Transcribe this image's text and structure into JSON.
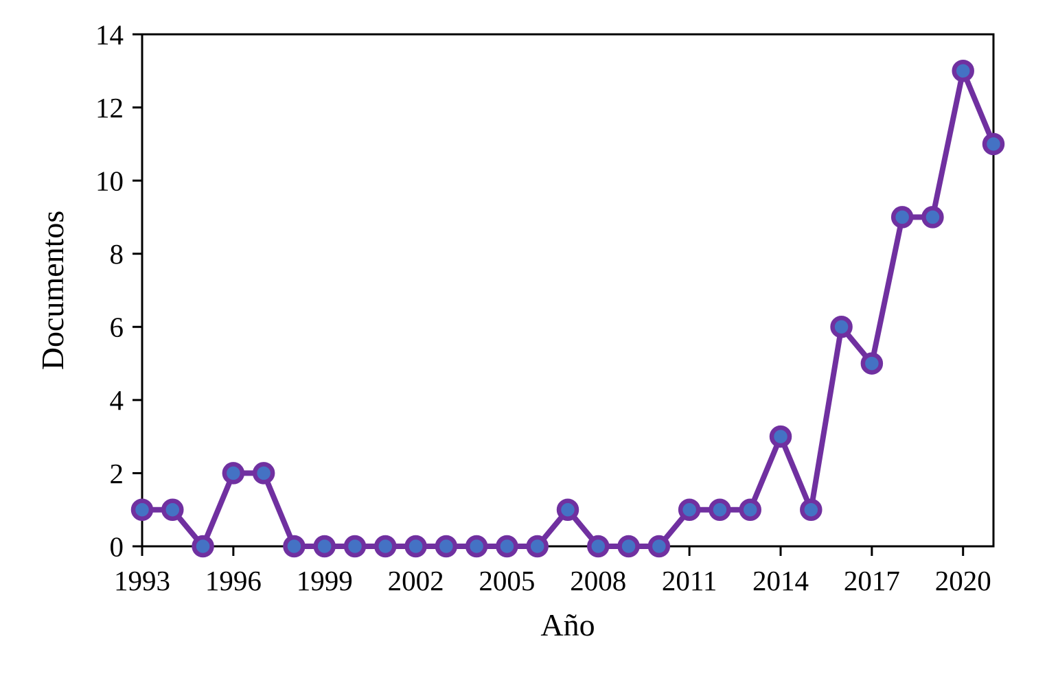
{
  "chart_data": {
    "type": "line",
    "title": "",
    "xlabel": "Año",
    "ylabel": "Documentos",
    "x": [
      1993,
      1994,
      1995,
      1996,
      1997,
      1998,
      1999,
      2000,
      2001,
      2002,
      2003,
      2004,
      2005,
      2006,
      2007,
      2008,
      2009,
      2010,
      2011,
      2012,
      2013,
      2014,
      2015,
      2016,
      2017,
      2018,
      2019,
      2020,
      2021
    ],
    "series": [
      {
        "name": "Documentos",
        "values": [
          1,
          1,
          0,
          2,
          2,
          0,
          0,
          0,
          0,
          0,
          0,
          0,
          0,
          0,
          1,
          0,
          0,
          0,
          1,
          1,
          1,
          3,
          1,
          6,
          5,
          9,
          9,
          13,
          11
        ]
      }
    ],
    "xlim": [
      1993,
      2021
    ],
    "ylim": [
      0,
      14
    ],
    "x_ticks": [
      1993,
      1996,
      1999,
      2002,
      2005,
      2008,
      2011,
      2014,
      2017,
      2020
    ],
    "y_ticks": [
      0,
      2,
      4,
      6,
      8,
      10,
      12,
      14
    ],
    "grid": false,
    "legend": "none",
    "colors": {
      "line": "#7030A0",
      "marker_fill": "#4472C4",
      "marker_edge": "#7030A0",
      "axis": "#000000",
      "background": "#ffffff"
    }
  }
}
